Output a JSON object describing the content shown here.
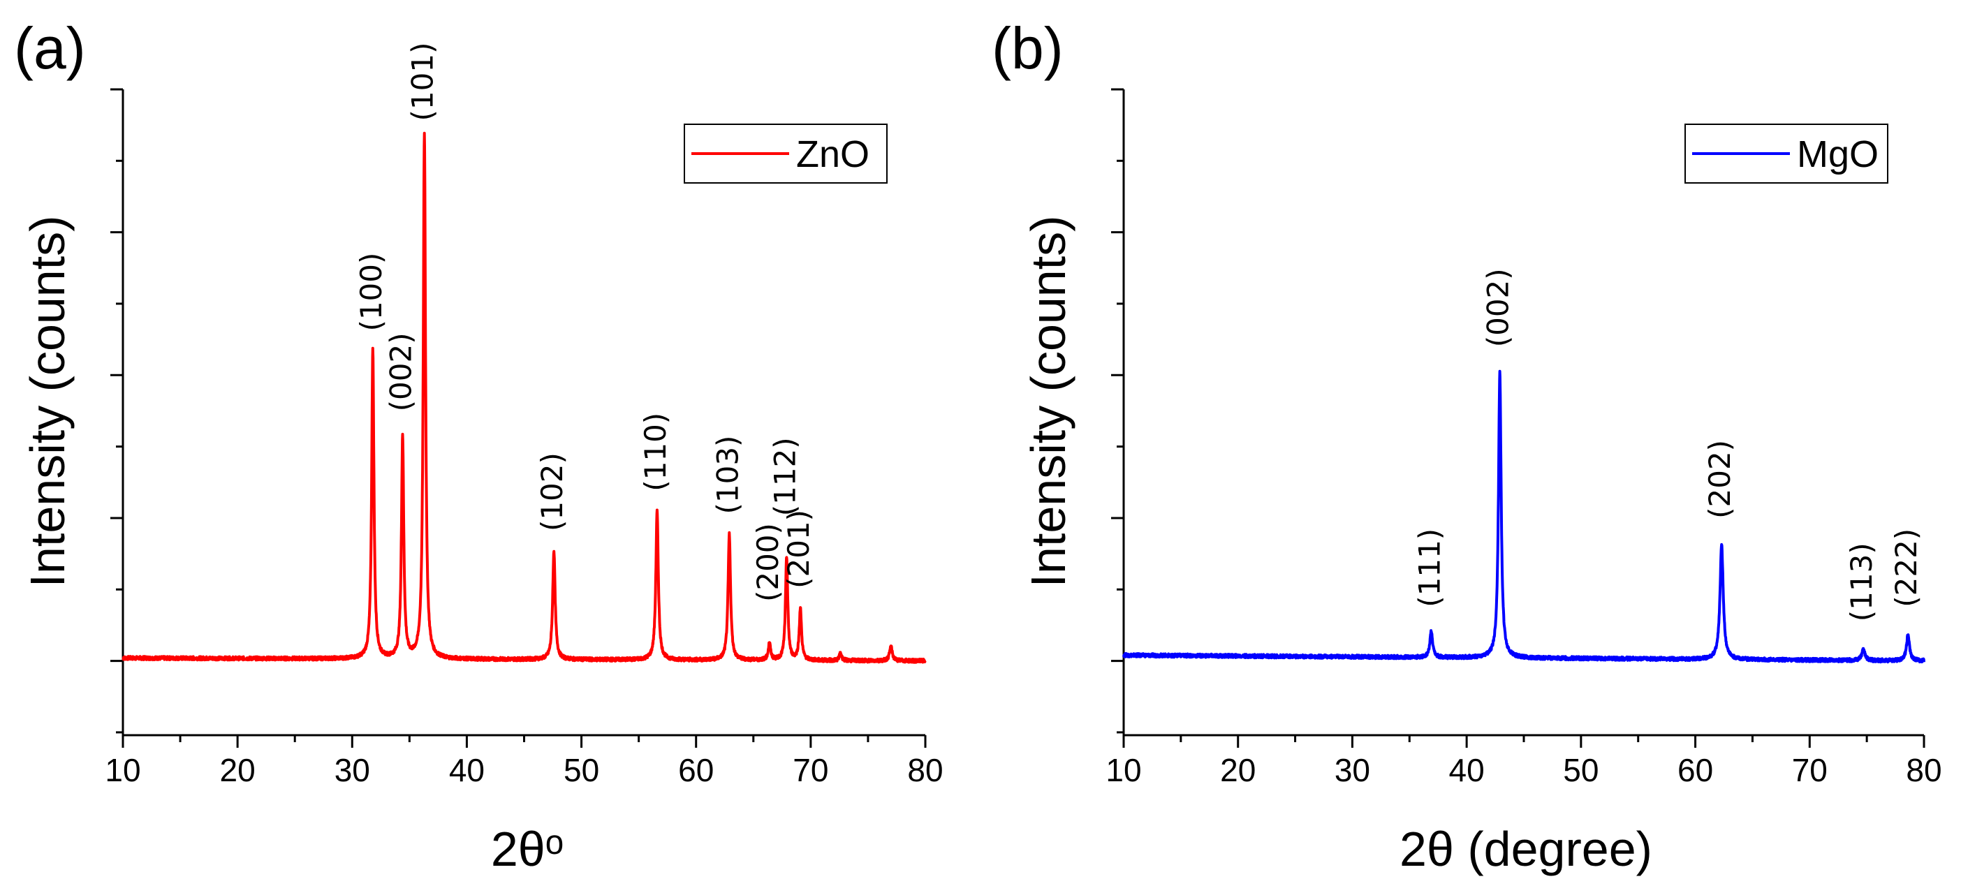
{
  "chart_data": [
    {
      "type": "line",
      "panel_label": "(a)",
      "xlabel": "2θᵒ",
      "ylabel": "Intensity (counts)",
      "xlim": [
        10,
        80
      ],
      "ylim": [
        -0.13,
        1.0
      ],
      "xticks": [
        10,
        20,
        30,
        40,
        50,
        60,
        70,
        80
      ],
      "legend": {
        "position": "top-right"
      },
      "series": [
        {
          "name": "ZnO",
          "color": "#ff0000",
          "baseline": [
            [
              10,
              0.005
            ],
            [
              80,
              0.0
            ]
          ],
          "peaks": [
            {
              "x": 31.8,
              "y": 0.54,
              "w": 0.12,
              "label": "(100)"
            },
            {
              "x": 34.4,
              "y": 0.39,
              "w": 0.12,
              "label": "(002)"
            },
            {
              "x": 36.3,
              "y": 0.92,
              "w": 0.12,
              "label": "(101)"
            },
            {
              "x": 47.6,
              "y": 0.19,
              "w": 0.13,
              "label": "(102)"
            },
            {
              "x": 56.6,
              "y": 0.26,
              "w": 0.13,
              "label": "(110)"
            },
            {
              "x": 62.9,
              "y": 0.22,
              "w": 0.13,
              "label": "(103)"
            },
            {
              "x": 66.4,
              "y": 0.03,
              "w": 0.12,
              "label": "(200)"
            },
            {
              "x": 67.9,
              "y": 0.18,
              "w": 0.12,
              "label": "(112)"
            },
            {
              "x": 69.1,
              "y": 0.09,
              "w": 0.12,
              "label": "(201)"
            },
            {
              "x": 72.6,
              "y": 0.013,
              "w": 0.12,
              "label": ""
            },
            {
              "x": 77.0,
              "y": 0.025,
              "w": 0.14,
              "label": ""
            }
          ]
        }
      ]
    },
    {
      "type": "line",
      "panel_label": "(b)",
      "xlabel": "2θ (degree)",
      "ylabel": "Intensity (counts)",
      "xlim": [
        10,
        80
      ],
      "ylim": [
        -0.13,
        1.0
      ],
      "xticks": [
        10,
        20,
        30,
        40,
        50,
        60,
        70,
        80
      ],
      "legend": {
        "position": "top-right"
      },
      "series": [
        {
          "name": "MgO",
          "color": "#0000ff",
          "baseline": [
            [
              10,
              0.01
            ],
            [
              80,
              0.0
            ]
          ],
          "peaks": [
            {
              "x": 36.9,
              "y": 0.045,
              "w": 0.14,
              "label": "(111)"
            },
            {
              "x": 42.9,
              "y": 0.5,
              "w": 0.14,
              "label": "(002)"
            },
            {
              "x": 62.3,
              "y": 0.2,
              "w": 0.17,
              "label": "(202)"
            },
            {
              "x": 74.7,
              "y": 0.02,
              "w": 0.16,
              "label": "(113)"
            },
            {
              "x": 78.6,
              "y": 0.045,
              "w": 0.16,
              "label": "(222)"
            }
          ]
        }
      ]
    }
  ]
}
